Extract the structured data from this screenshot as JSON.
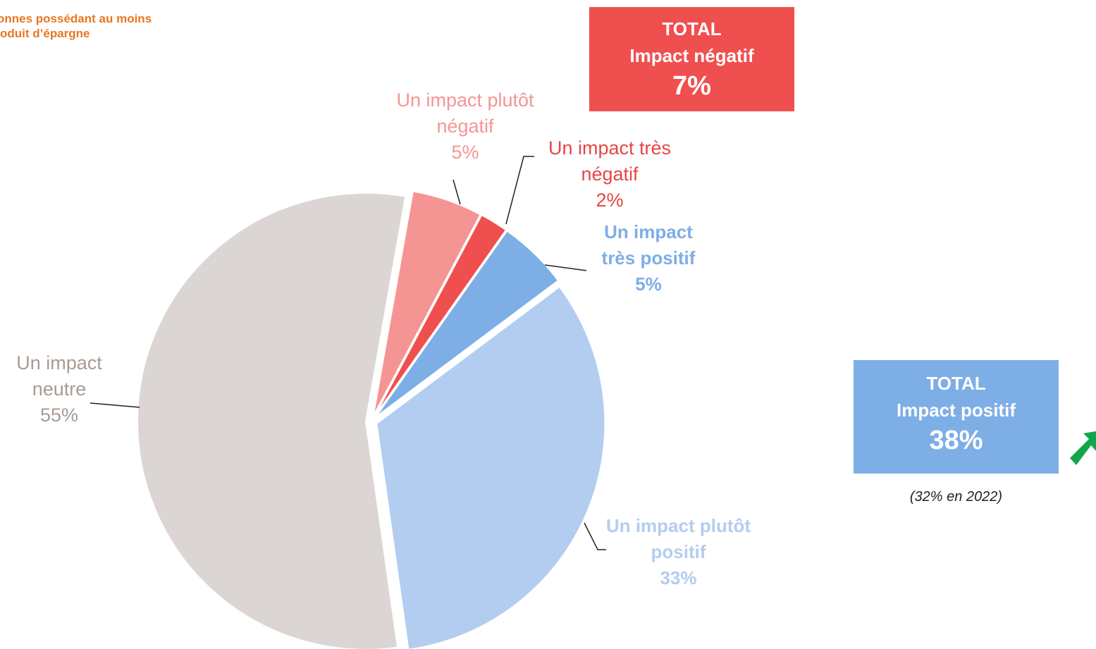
{
  "chart_data": {
    "type": "pie",
    "title": [
      "onnes possédant au moins",
      "oduit d’épargne"
    ],
    "categories": [
      "Un impact plutôt négatif",
      "Un impact très négatif",
      "Un impact très positif",
      "Un impact plutôt positif",
      "Un impact neutre"
    ],
    "values": [
      5,
      2,
      5,
      33,
      55
    ],
    "value_labels": [
      "5%",
      "2%",
      "5%",
      "33%",
      "55%"
    ],
    "colors": [
      "#f59593",
      "#f04f4f",
      "#7eaee6",
      "#b3cdf0",
      "#dbd6d3"
    ],
    "label_colors": [
      "#f59593",
      "#e84545",
      "#7eaee6",
      "#b3cdf0",
      "#a89b93"
    ],
    "start_angle": 10,
    "totals": [
      {
        "title": "TOTAL",
        "label": "Impact négatif",
        "value_label": "7%",
        "color": "#f04f4f"
      },
      {
        "title": "TOTAL",
        "label": "Impact positif",
        "value_label": "38%",
        "color": "#7eaee6"
      }
    ],
    "note": "(32% en 2022)"
  }
}
